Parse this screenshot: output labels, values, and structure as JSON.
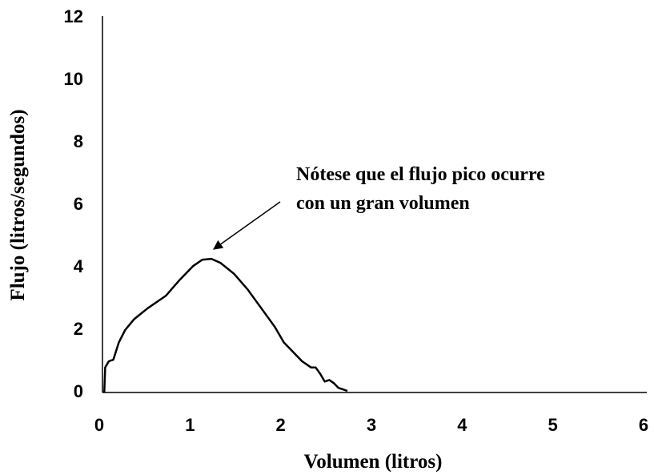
{
  "chart_data": {
    "type": "line",
    "xlabel": "Volumen (litros)",
    "ylabel": "Flujo (litros/segundos)",
    "annotation": [
      "Nótese que el flujo pico ocurre",
      "con un gran volumen"
    ],
    "xlim": [
      0,
      6
    ],
    "xticks": [
      0,
      1,
      2,
      3,
      4,
      5,
      6
    ],
    "ylim": [
      0,
      12
    ],
    "yticks": [
      0,
      2,
      4,
      6,
      8,
      10,
      12
    ],
    "series": [
      {
        "name": "Flujo",
        "color": "#000000",
        "x": [
          0.02,
          0.03,
          0.07,
          0.12,
          0.18,
          0.25,
          0.35,
          0.5,
          0.7,
          0.85,
          1.0,
          1.1,
          1.2,
          1.3,
          1.45,
          1.6,
          1.75,
          1.9,
          2.0,
          2.1,
          2.2,
          2.3,
          2.35,
          2.4,
          2.45,
          2.5,
          2.55,
          2.6,
          2.65,
          2.7
        ],
        "values": [
          0,
          0.8,
          1.0,
          1.05,
          1.6,
          2.0,
          2.35,
          2.7,
          3.1,
          3.6,
          4.05,
          4.25,
          4.28,
          4.15,
          3.8,
          3.3,
          2.7,
          2.1,
          1.6,
          1.3,
          1.0,
          0.8,
          0.8,
          0.6,
          0.35,
          0.4,
          0.3,
          0.15,
          0.1,
          0.05
        ]
      }
    ]
  }
}
